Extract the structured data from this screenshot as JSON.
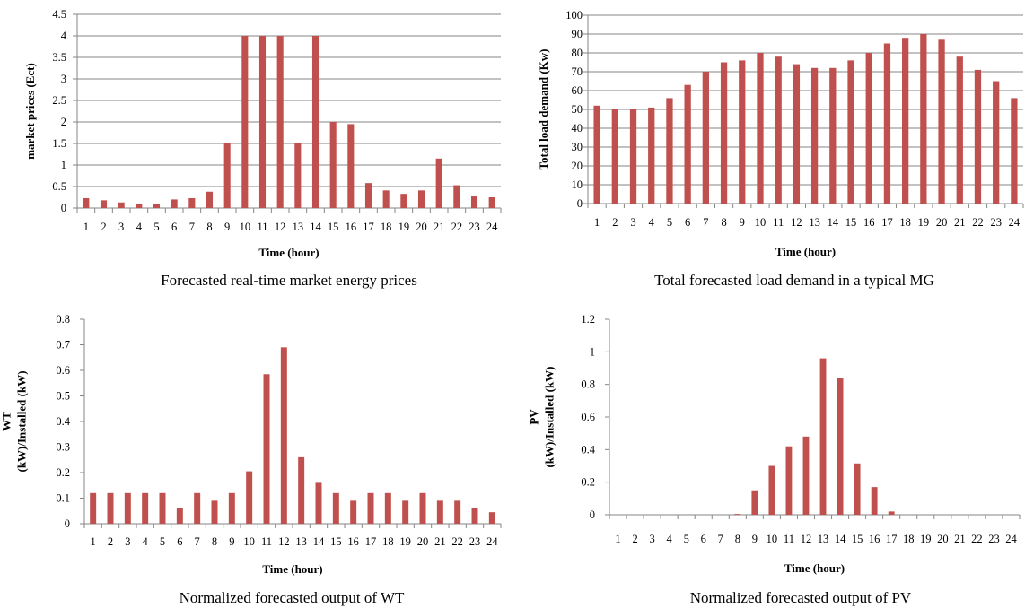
{
  "colors": {
    "bar": "#C0504D",
    "grid": "#868686",
    "axis": "#868686"
  },
  "chart_data": [
    {
      "type": "bar",
      "caption": "Forecasted real-time market energy prices",
      "xlabel": "Time (hour)",
      "ylabel": [
        "market prices (Ect)"
      ],
      "ylim": [
        0,
        4.5
      ],
      "yticks": [
        "0",
        "0.5",
        "1",
        "1.5",
        "2",
        "2.5",
        "3",
        "3.5",
        "4",
        "4.5"
      ],
      "grid": true,
      "categories": [
        "1",
        "2",
        "3",
        "4",
        "5",
        "6",
        "7",
        "8",
        "9",
        "10",
        "11",
        "12",
        "13",
        "14",
        "15",
        "16",
        "17",
        "18",
        "19",
        "20",
        "21",
        "22",
        "23",
        "24"
      ],
      "values": [
        0.23,
        0.18,
        0.13,
        0.1,
        0.1,
        0.2,
        0.23,
        0.38,
        1.5,
        4.0,
        4.0,
        4.0,
        1.5,
        4.0,
        2.0,
        1.95,
        0.58,
        0.41,
        0.33,
        0.41,
        1.15,
        0.53,
        0.27,
        0.25
      ]
    },
    {
      "type": "bar",
      "caption": "Total forecasted load demand in a typical MG",
      "xlabel": "Time (hour)",
      "ylabel": [
        "Total load demand (Kw)"
      ],
      "ylim": [
        0,
        100
      ],
      "yticks": [
        "0",
        "10",
        "20",
        "30",
        "40",
        "50",
        "60",
        "70",
        "80",
        "90",
        "100"
      ],
      "grid": true,
      "categories": [
        "1",
        "2",
        "3",
        "4",
        "5",
        "6",
        "7",
        "8",
        "9",
        "10",
        "11",
        "12",
        "13",
        "14",
        "15",
        "16",
        "17",
        "18",
        "19",
        "20",
        "21",
        "22",
        "23",
        "24"
      ],
      "values": [
        52,
        50,
        50,
        51,
        56,
        63,
        70,
        75,
        76,
        80,
        78,
        74,
        72,
        72,
        76,
        80,
        85,
        88,
        90,
        87,
        78,
        71,
        65,
        56
      ]
    },
    {
      "type": "bar",
      "caption": "Normalized forecasted output of WT",
      "xlabel": "Time (hour)",
      "ylabel": [
        "WT",
        "(kW)/Installed (kW)"
      ],
      "ylim": [
        0,
        0.8
      ],
      "yticks": [
        "0",
        "0.1",
        "0.2",
        "0.3",
        "0.4",
        "0.5",
        "0.6",
        "0.7",
        "0.8"
      ],
      "grid": false,
      "categories": [
        "1",
        "2",
        "3",
        "4",
        "5",
        "6",
        "7",
        "8",
        "9",
        "10",
        "11",
        "12",
        "13",
        "14",
        "15",
        "16",
        "17",
        "18",
        "19",
        "20",
        "21",
        "22",
        "23",
        "24"
      ],
      "values": [
        0.12,
        0.12,
        0.12,
        0.12,
        0.12,
        0.06,
        0.12,
        0.09,
        0.12,
        0.205,
        0.585,
        0.69,
        0.26,
        0.16,
        0.12,
        0.09,
        0.12,
        0.12,
        0.09,
        0.12,
        0.09,
        0.09,
        0.06,
        0.045
      ]
    },
    {
      "type": "bar",
      "caption": "Normalized forecasted output of PV",
      "xlabel": "Time (hour)",
      "ylabel": [
        "PV",
        "(kW)/Installed (kW)"
      ],
      "ylim": [
        0,
        1.2
      ],
      "yticks": [
        "0",
        "0.2",
        "0.4",
        "0.6",
        "0.8",
        "1",
        "1.2"
      ],
      "grid": false,
      "categories": [
        "1",
        "2",
        "3",
        "4",
        "5",
        "6",
        "7",
        "8",
        "9",
        "10",
        "11",
        "12",
        "13",
        "14",
        "15",
        "16",
        "17",
        "18",
        "19",
        "20",
        "21",
        "22",
        "23",
        "24"
      ],
      "values": [
        0,
        0,
        0,
        0,
        0,
        0,
        0,
        0.005,
        0.15,
        0.3,
        0.42,
        0.48,
        0.96,
        0.84,
        0.315,
        0.17,
        0.02,
        0,
        0,
        0,
        0,
        0,
        0,
        0
      ]
    }
  ]
}
